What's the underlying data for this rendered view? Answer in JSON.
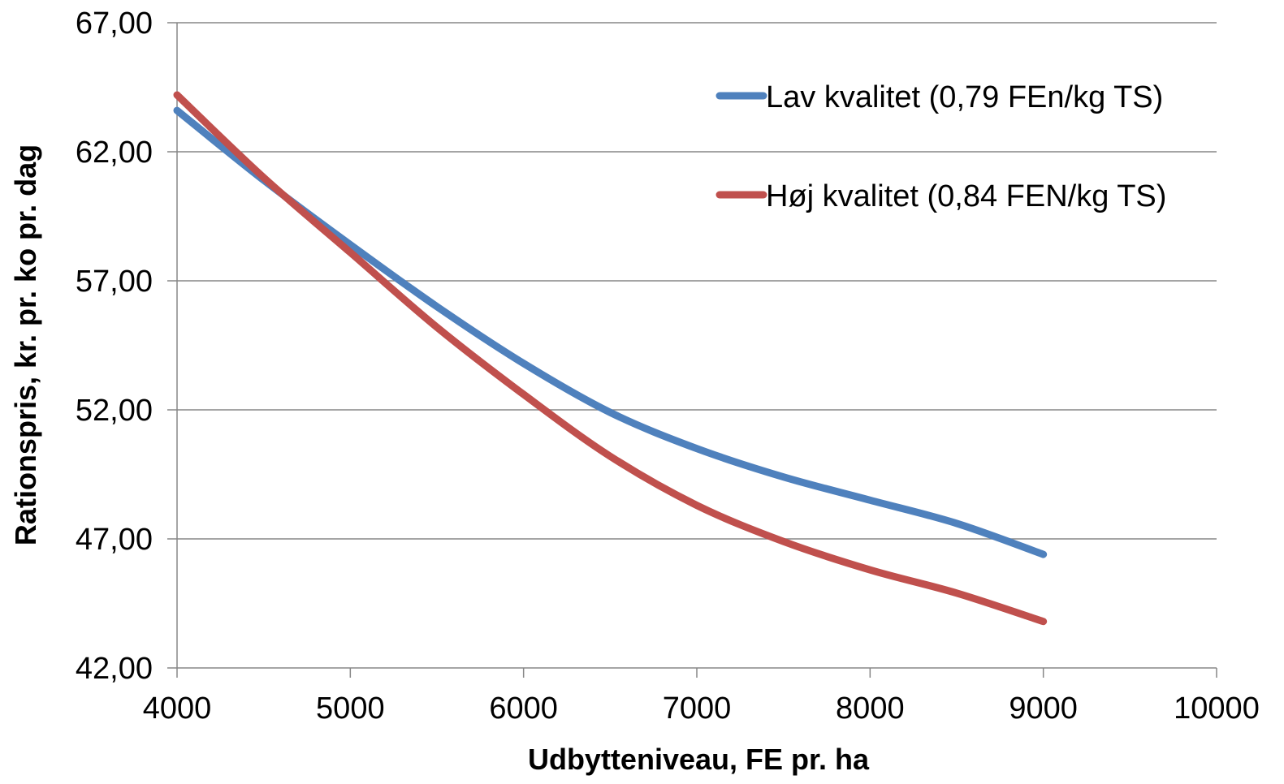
{
  "chart_data": {
    "type": "line",
    "title": "",
    "xlabel": "Udbytteniveau, FE pr. ha",
    "ylabel": "Rationspris, kr. pr. ko pr. dag",
    "xlim": [
      4000,
      10000
    ],
    "ylim": [
      42,
      67
    ],
    "xticks": [
      {
        "value": 4000,
        "label": "4000"
      },
      {
        "value": 5000,
        "label": "5000"
      },
      {
        "value": 6000,
        "label": "6000"
      },
      {
        "value": 7000,
        "label": "7000"
      },
      {
        "value": 8000,
        "label": "8000"
      },
      {
        "value": 9000,
        "label": "9000"
      },
      {
        "value": 10000,
        "label": "10000"
      }
    ],
    "yticks": [
      {
        "value": 42,
        "label": "42,00"
      },
      {
        "value": 47,
        "label": "47,00"
      },
      {
        "value": 52,
        "label": "52,00"
      },
      {
        "value": 57,
        "label": "57,00"
      },
      {
        "value": 62,
        "label": "62,00"
      },
      {
        "value": 67,
        "label": "67,00"
      }
    ],
    "grid": "horizontal",
    "legend_position": "top-right",
    "series": [
      {
        "name": "Lav kvalitet (0,79 FEn/kg TS)",
        "color": "#4f81bd",
        "x": [
          4000,
          4500,
          5000,
          5500,
          6000,
          6500,
          7000,
          7500,
          8000,
          8500,
          9000
        ],
        "y": [
          63.6,
          60.9,
          58.4,
          56.0,
          53.8,
          51.9,
          50.5,
          49.4,
          48.5,
          47.6,
          46.4
        ]
      },
      {
        "name": "Høj kvalitet (0,84 FEN/kg TS)",
        "color": "#c0504d",
        "x": [
          4000,
          4500,
          5000,
          5500,
          6000,
          6500,
          7000,
          7500,
          8000,
          8500,
          9000
        ],
        "y": [
          64.2,
          61.0,
          58.1,
          55.2,
          52.6,
          50.2,
          48.3,
          46.9,
          45.8,
          44.9,
          43.8
        ]
      }
    ]
  }
}
